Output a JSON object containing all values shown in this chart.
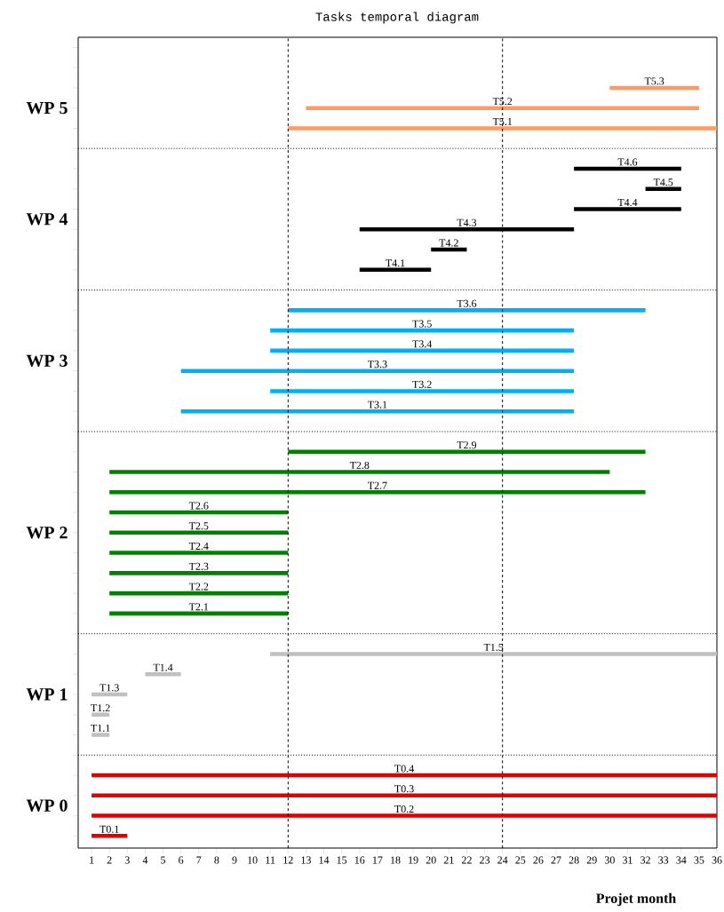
{
  "chart_data": {
    "type": "bar",
    "orientation": "horizontal",
    "title": "Tasks temporal diagram",
    "xlabel": "Projet month",
    "categories": [
      null,
      null,
      "T5.3",
      "T5.2",
      "T5.1",
      null,
      "T4.6",
      "T4.5",
      "T4.4",
      "T4.3",
      "T4.2",
      "T4.1",
      null,
      "T3.6",
      "T3.5",
      "T3.4",
      "T3.3",
      "T3.2",
      "T3.1",
      null,
      "T2.9",
      "T2.8",
      "T2.7",
      "T2.6",
      "T2.5",
      "T2.4",
      "T2.3",
      "T2.2",
      "T2.1",
      null,
      "T1.5",
      "T1.4",
      "T1.3",
      "T1.2",
      "T1.1",
      null,
      "T0.4",
      "T0.3",
      "T0.2",
      "T0.1"
    ],
    "base": [
      null,
      null,
      30,
      13,
      12,
      null,
      28,
      32,
      28,
      16,
      20,
      16,
      null,
      12,
      11,
      11,
      6,
      11,
      6,
      null,
      12,
      2,
      2,
      2,
      2,
      2,
      2,
      2,
      2,
      null,
      11,
      4,
      1,
      1,
      1,
      null,
      1,
      1,
      1,
      1
    ],
    "values": [
      null,
      null,
      5,
      22,
      24,
      null,
      6,
      2,
      6,
      12,
      2,
      4,
      null,
      20,
      17,
      17,
      22,
      17,
      22,
      null,
      20,
      28,
      30,
      10,
      10,
      10,
      10,
      10,
      10,
      null,
      25,
      2,
      2,
      1,
      1,
      null,
      35,
      35,
      35,
      2
    ],
    "colors": [
      null,
      null,
      "#ff9966",
      "#ff9966",
      "#ff9966",
      null,
      "#000000",
      "#000000",
      "#000000",
      "#000000",
      "#000000",
      "#000000",
      null,
      "#00b0f0",
      "#00b0f0",
      "#00b0f0",
      "#00b0f0",
      "#00b0f0",
      "#00b0f0",
      null,
      "#008000",
      "#008000",
      "#008000",
      "#008000",
      "#008000",
      "#008000",
      "#008000",
      "#008000",
      "#008000",
      null,
      "#c0c0c0",
      "#c0c0c0",
      "#c0c0c0",
      "#c0c0c0",
      "#c0c0c0",
      null,
      "#e00000",
      "#e00000",
      "#e00000",
      "#e00000"
    ],
    "xlim": [
      0.25,
      36
    ],
    "xticks": [
      1,
      2,
      3,
      4,
      5,
      6,
      7,
      8,
      9,
      10,
      11,
      12,
      13,
      14,
      15,
      16,
      17,
      18,
      19,
      20,
      21,
      22,
      23,
      24,
      25,
      26,
      27,
      28,
      29,
      30,
      31,
      32,
      33,
      34,
      35,
      36
    ],
    "ref_lines": [
      {
        "axis": "x",
        "value": 12,
        "line_style": "dashed"
      },
      {
        "axis": "x",
        "value": 24,
        "line_style": "dashed"
      }
    ],
    "annotations": [
      "WP 5",
      "WP 4",
      "WP 3",
      "WP 2",
      "WP 1",
      "WP 0"
    ],
    "grid": false
  }
}
